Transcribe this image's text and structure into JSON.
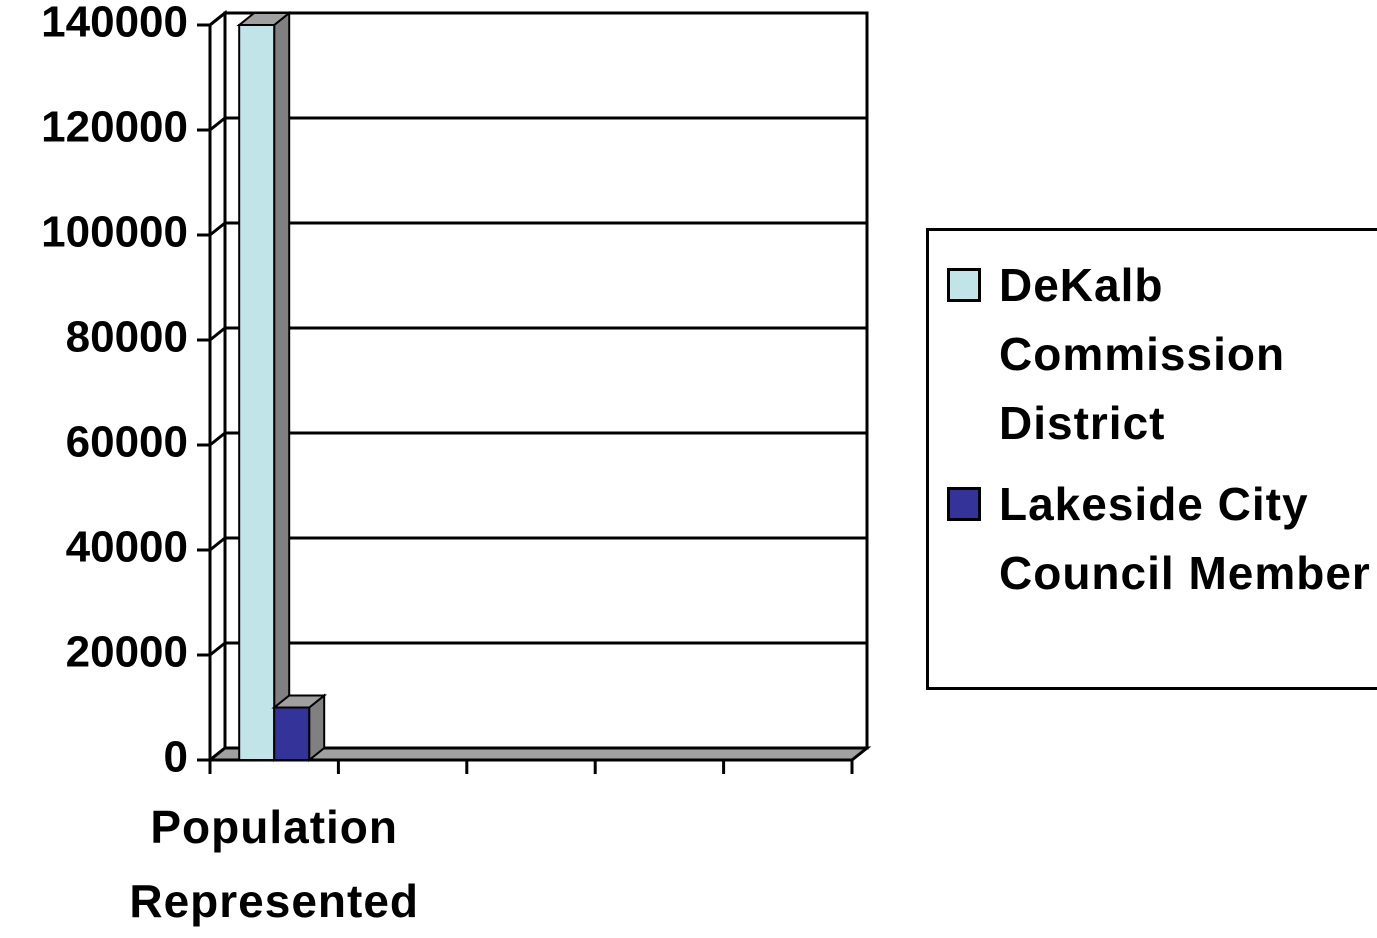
{
  "chart_data": {
    "type": "bar3d",
    "categories": [
      "Population Represented",
      null,
      null,
      null,
      null
    ],
    "series": [
      {
        "name": "DeKalb Commission District",
        "color": "#c0e4e8",
        "values": [
          140000,
          null,
          null,
          null,
          null
        ]
      },
      {
        "name": "Lakeside City Council Member",
        "color": "#333399",
        "values": [
          10000,
          null,
          null,
          null,
          null
        ]
      }
    ],
    "ylim": [
      0,
      140000
    ],
    "yticks": [
      0,
      20000,
      40000,
      60000,
      80000,
      100000,
      120000,
      140000
    ],
    "grid": true,
    "legend": "right"
  }
}
